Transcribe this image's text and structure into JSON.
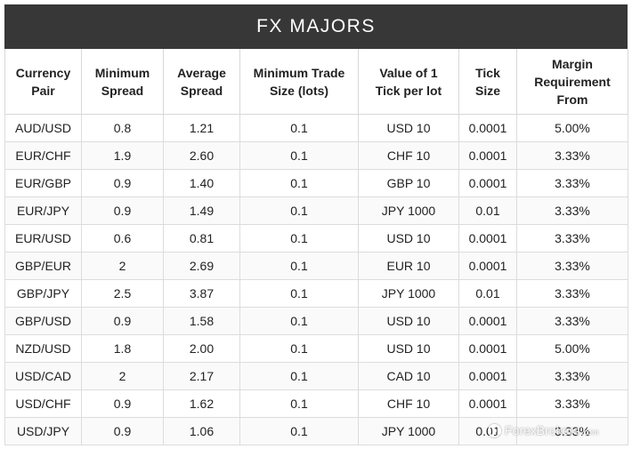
{
  "title": "FX MAJORS",
  "columns": [
    [
      "Currency",
      "Pair"
    ],
    [
      "Minimum",
      "Spread"
    ],
    [
      "Average",
      "Spread"
    ],
    [
      "Minimum Trade",
      "Size (lots)"
    ],
    [
      "Value of 1",
      "Tick per lot"
    ],
    [
      "Tick",
      "Size"
    ],
    [
      "Margin",
      "Requirement",
      "From"
    ]
  ],
  "rows": [
    [
      "AUD/USD",
      "0.8",
      "1.21",
      "0.1",
      "USD 10",
      "0.0001",
      "5.00%"
    ],
    [
      "EUR/CHF",
      "1.9",
      "2.60",
      "0.1",
      "CHF 10",
      "0.0001",
      "3.33%"
    ],
    [
      "EUR/GBP",
      "0.9",
      "1.40",
      "0.1",
      "GBP 10",
      "0.0001",
      "3.33%"
    ],
    [
      "EUR/JPY",
      "0.9",
      "1.49",
      "0.1",
      "JPY 1000",
      "0.01",
      "3.33%"
    ],
    [
      "EUR/USD",
      "0.6",
      "0.81",
      "0.1",
      "USD 10",
      "0.0001",
      "3.33%"
    ],
    [
      "GBP/EUR",
      "2",
      "2.69",
      "0.1",
      "EUR 10",
      "0.0001",
      "3.33%"
    ],
    [
      "GBP/JPY",
      "2.5",
      "3.87",
      "0.1",
      "JPY 1000",
      "0.01",
      "3.33%"
    ],
    [
      "GBP/USD",
      "0.9",
      "1.58",
      "0.1",
      "USD 10",
      "0.0001",
      "3.33%"
    ],
    [
      "NZD/USD",
      "1.8",
      "2.00",
      "0.1",
      "USD 10",
      "0.0001",
      "5.00%"
    ],
    [
      "USD/CAD",
      "2",
      "2.17",
      "0.1",
      "CAD 10",
      "0.0001",
      "3.33%"
    ],
    [
      "USD/CHF",
      "0.9",
      "1.62",
      "0.1",
      "CHF 10",
      "0.0001",
      "3.33%"
    ],
    [
      "USD/JPY",
      "0.9",
      "1.06",
      "0.1",
      "JPY 1000",
      "0.01",
      "3.33%"
    ]
  ],
  "watermark": {
    "brand": "ForexBrokers",
    "suffix": ".com"
  },
  "colors": {
    "title_bar": "#373737",
    "title_text": "#ffffff",
    "grid_line": "#dcdcdc"
  }
}
